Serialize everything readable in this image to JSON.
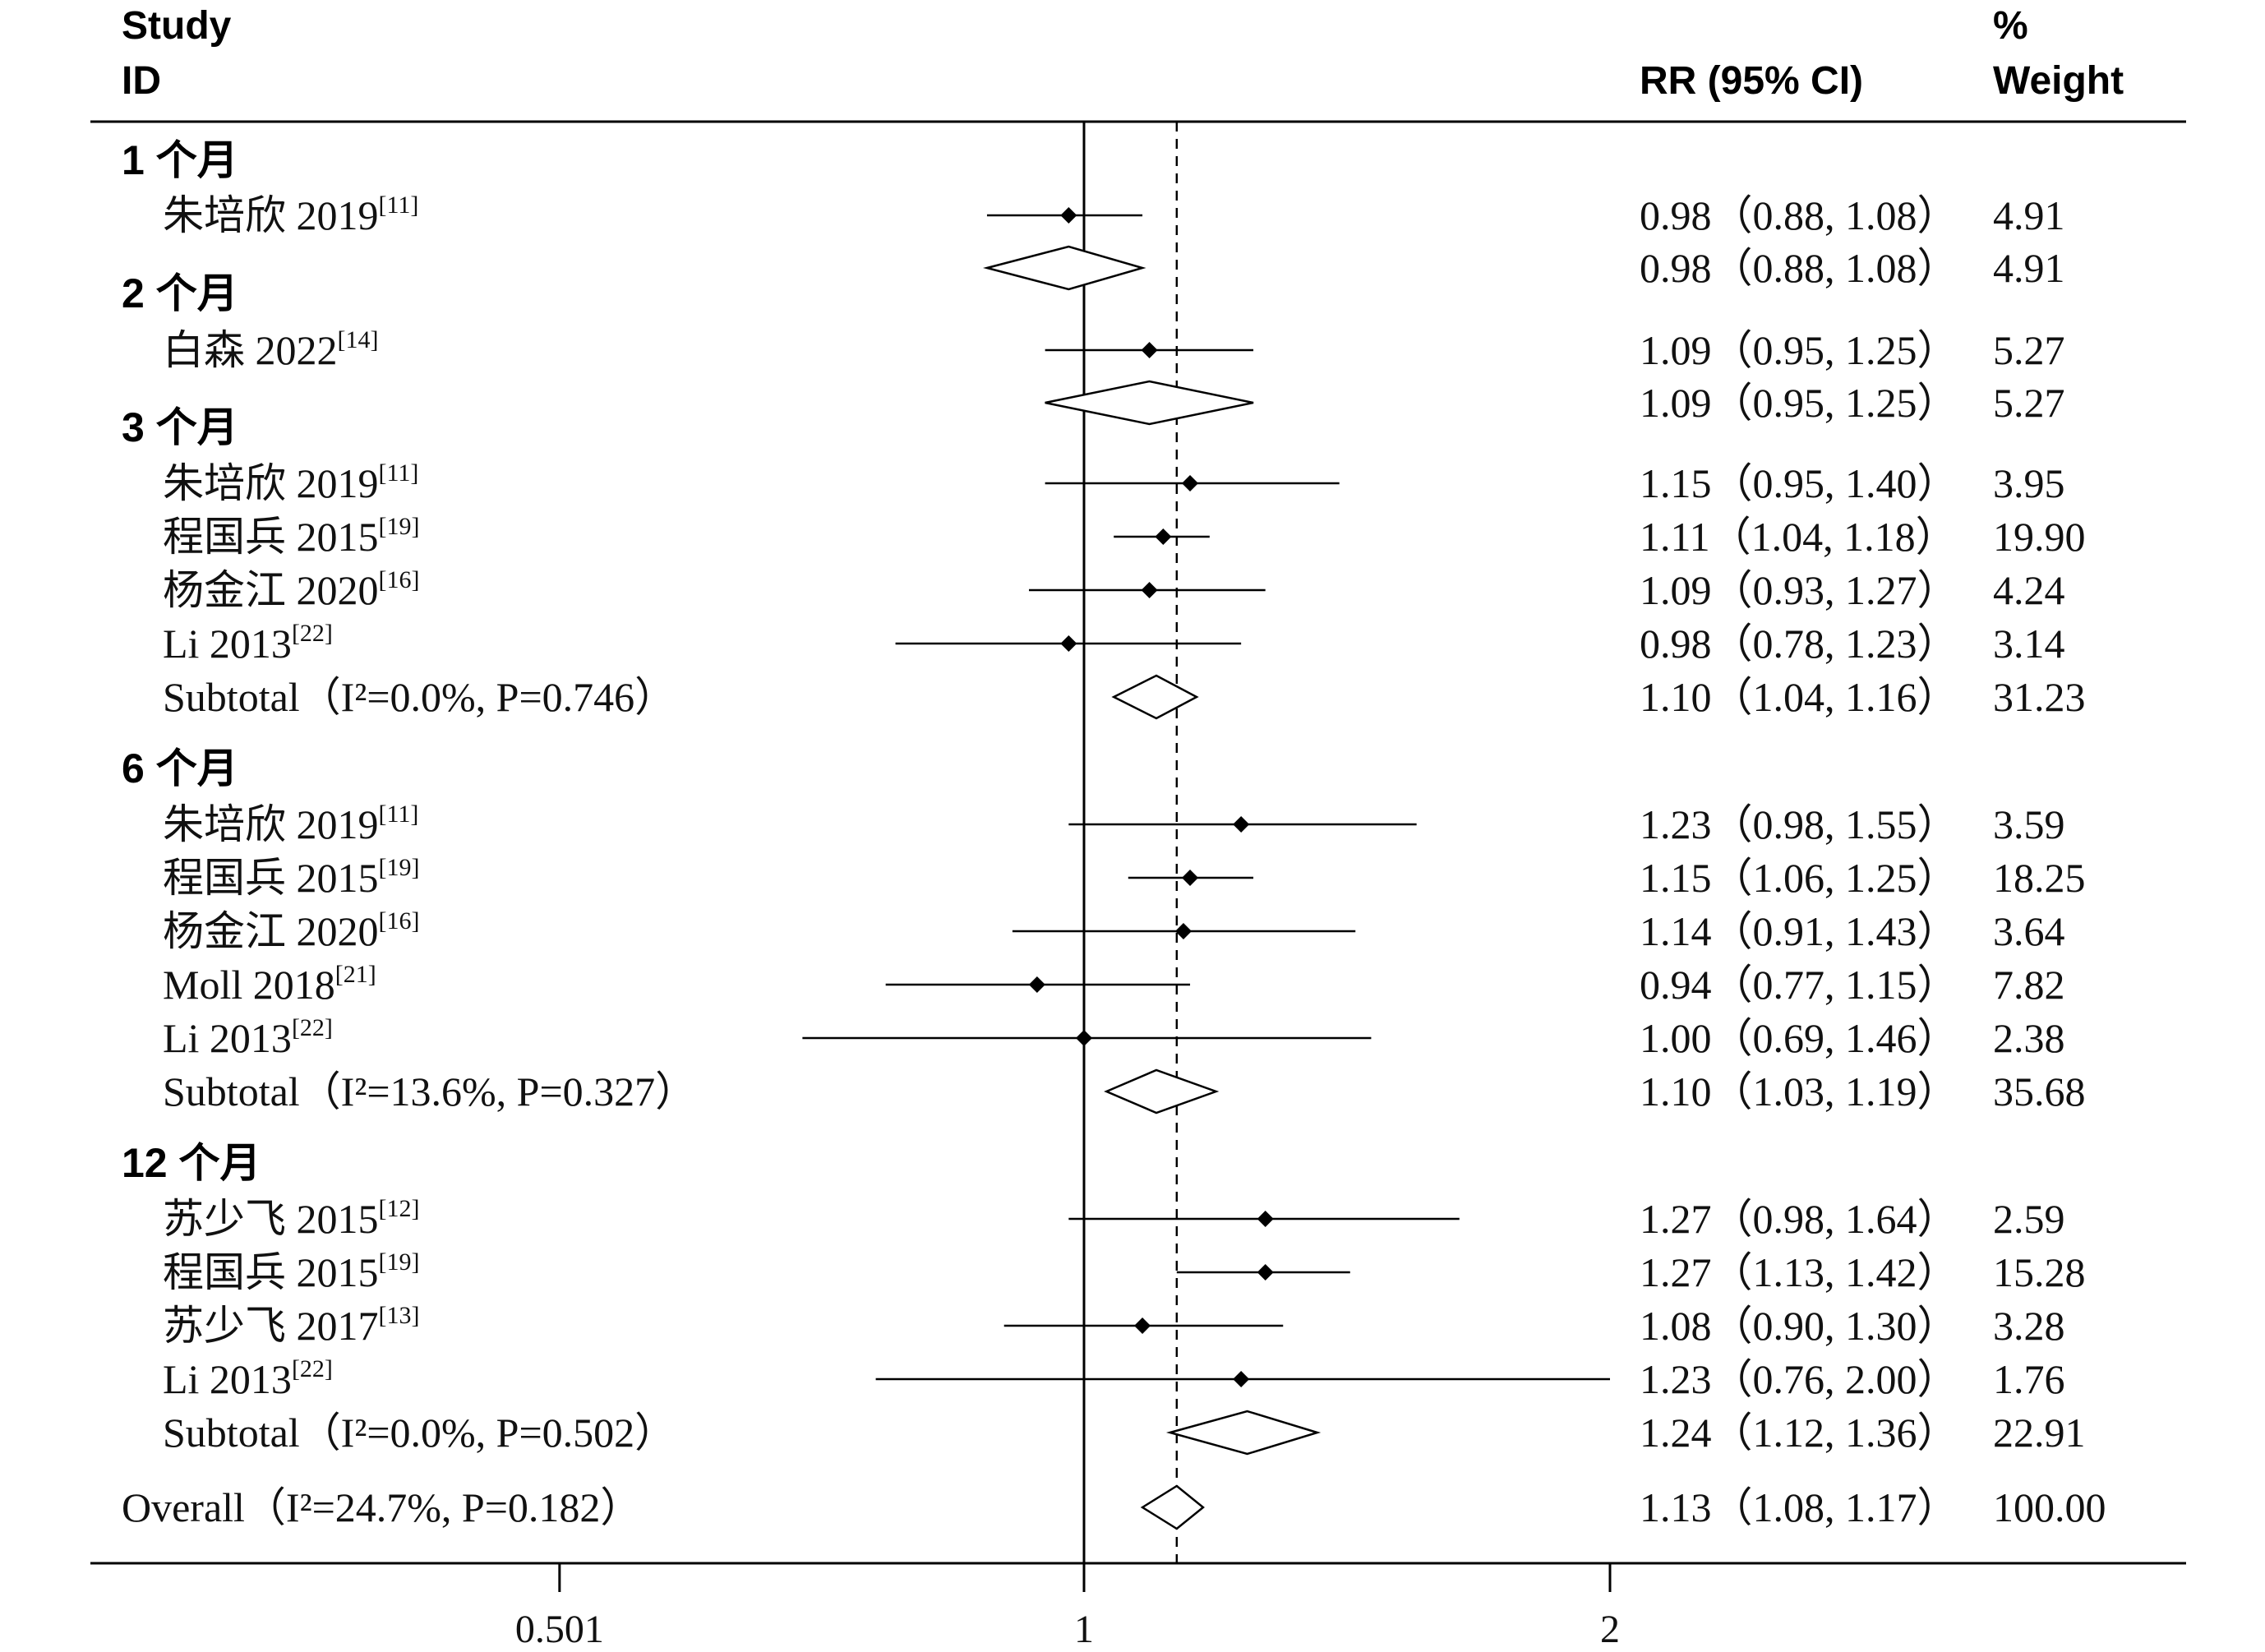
{
  "chart_data": {
    "type": "forest",
    "headers": {
      "study_line1": "Study",
      "study_line2": "ID",
      "rr": "RR (95% CI)",
      "weight_line1": "%",
      "weight_line2": "Weight"
    },
    "x_scale": "log",
    "reference_line": 1,
    "overall_effect_line": 1.13,
    "x_ticks": [
      {
        "value": 0.501,
        "label": "0.501"
      },
      {
        "value": 1,
        "label": "1"
      },
      {
        "value": 2,
        "label": "2"
      }
    ],
    "groups": [
      {
        "label": "1 个月",
        "studies": [
          {
            "study": "朱培欣 2019",
            "ref": "[11]",
            "rr": 0.98,
            "lo": 0.88,
            "hi": 1.08,
            "ci_text": "0.98（0.88, 1.08）",
            "weight": "4.91"
          }
        ],
        "subtotal": {
          "label": "",
          "rr": 0.98,
          "lo": 0.88,
          "hi": 1.08,
          "ci_text": "0.98（0.88, 1.08）",
          "weight": "4.91"
        }
      },
      {
        "label": "2 个月",
        "studies": [
          {
            "study": "白森 2022",
            "ref": "[14]",
            "rr": 1.09,
            "lo": 0.95,
            "hi": 1.25,
            "ci_text": "1.09（0.95, 1.25）",
            "weight": "5.27"
          }
        ],
        "subtotal": {
          "label": "",
          "rr": 1.09,
          "lo": 0.95,
          "hi": 1.25,
          "ci_text": "1.09（0.95, 1.25）",
          "weight": "5.27"
        }
      },
      {
        "label": "3 个月",
        "studies": [
          {
            "study": "朱培欣 2019",
            "ref": "[11]",
            "rr": 1.15,
            "lo": 0.95,
            "hi": 1.4,
            "ci_text": "1.15（0.95, 1.40）",
            "weight": "3.95"
          },
          {
            "study": "程国兵 2015",
            "ref": "[19]",
            "rr": 1.11,
            "lo": 1.04,
            "hi": 1.18,
            "ci_text": "1.11（1.04, 1.18）",
            "weight": "19.90"
          },
          {
            "study": "杨金江 2020",
            "ref": "[16]",
            "rr": 1.09,
            "lo": 0.93,
            "hi": 1.27,
            "ci_text": "1.09（0.93, 1.27）",
            "weight": "4.24"
          },
          {
            "study": "Li 2013",
            "ref": "[22]",
            "rr": 0.98,
            "lo": 0.78,
            "hi": 1.23,
            "ci_text": "0.98（0.78, 1.23）",
            "weight": "3.14"
          }
        ],
        "subtotal": {
          "label": "Subtotal（I²=0.0%, P=0.746）",
          "rr": 1.1,
          "lo": 1.04,
          "hi": 1.16,
          "ci_text": "1.10（1.04, 1.16）",
          "weight": "31.23"
        }
      },
      {
        "label": "6 个月",
        "studies": [
          {
            "study": "朱培欣 2019",
            "ref": "[11]",
            "rr": 1.23,
            "lo": 0.98,
            "hi": 1.55,
            "ci_text": "1.23（0.98, 1.55）",
            "weight": "3.59"
          },
          {
            "study": "程国兵 2015",
            "ref": "[19]",
            "rr": 1.15,
            "lo": 1.06,
            "hi": 1.25,
            "ci_text": "1.15（1.06, 1.25）",
            "weight": "18.25"
          },
          {
            "study": "杨金江 2020",
            "ref": "[16]",
            "rr": 1.14,
            "lo": 0.91,
            "hi": 1.43,
            "ci_text": "1.14（0.91, 1.43）",
            "weight": "3.64"
          },
          {
            "study": "Moll 2018",
            "ref": "[21]",
            "rr": 0.94,
            "lo": 0.77,
            "hi": 1.15,
            "ci_text": "0.94（0.77, 1.15）",
            "weight": "7.82"
          },
          {
            "study": "Li 2013",
            "ref": "[22]",
            "rr": 1.0,
            "lo": 0.69,
            "hi": 1.46,
            "ci_text": "1.00（0.69, 1.46）",
            "weight": "2.38"
          }
        ],
        "subtotal": {
          "label": "Subtotal（I²=13.6%, P=0.327）",
          "rr": 1.1,
          "lo": 1.03,
          "hi": 1.19,
          "ci_text": "1.10（1.03, 1.19）",
          "weight": "35.68"
        }
      },
      {
        "label": "12 个月",
        "studies": [
          {
            "study": "苏少飞 2015",
            "ref": "[12]",
            "rr": 1.27,
            "lo": 0.98,
            "hi": 1.64,
            "ci_text": "1.27（0.98, 1.64）",
            "weight": "2.59"
          },
          {
            "study": "程国兵 2015",
            "ref": "[19]",
            "rr": 1.27,
            "lo": 1.13,
            "hi": 1.42,
            "ci_text": "1.27（1.13, 1.42）",
            "weight": "15.28"
          },
          {
            "study": "苏少飞 2017",
            "ref": "[13]",
            "rr": 1.08,
            "lo": 0.9,
            "hi": 1.3,
            "ci_text": "1.08（0.90, 1.30）",
            "weight": "3.28"
          },
          {
            "study": "Li 2013",
            "ref": "[22]",
            "rr": 1.23,
            "lo": 0.76,
            "hi": 2.0,
            "ci_text": "1.23（0.76, 2.00）",
            "weight": "1.76"
          }
        ],
        "subtotal": {
          "label": "Subtotal（I²=0.0%, P=0.502）",
          "rr": 1.24,
          "lo": 1.12,
          "hi": 1.36,
          "ci_text": "1.24（1.12, 1.36）",
          "weight": "22.91"
        }
      }
    ],
    "overall": {
      "label": "Overall（I²=24.7%, P=0.182）",
      "rr": 1.13,
      "lo": 1.08,
      "hi": 1.17,
      "ci_text": "1.13（1.08, 1.17）",
      "weight": "100.00"
    }
  }
}
